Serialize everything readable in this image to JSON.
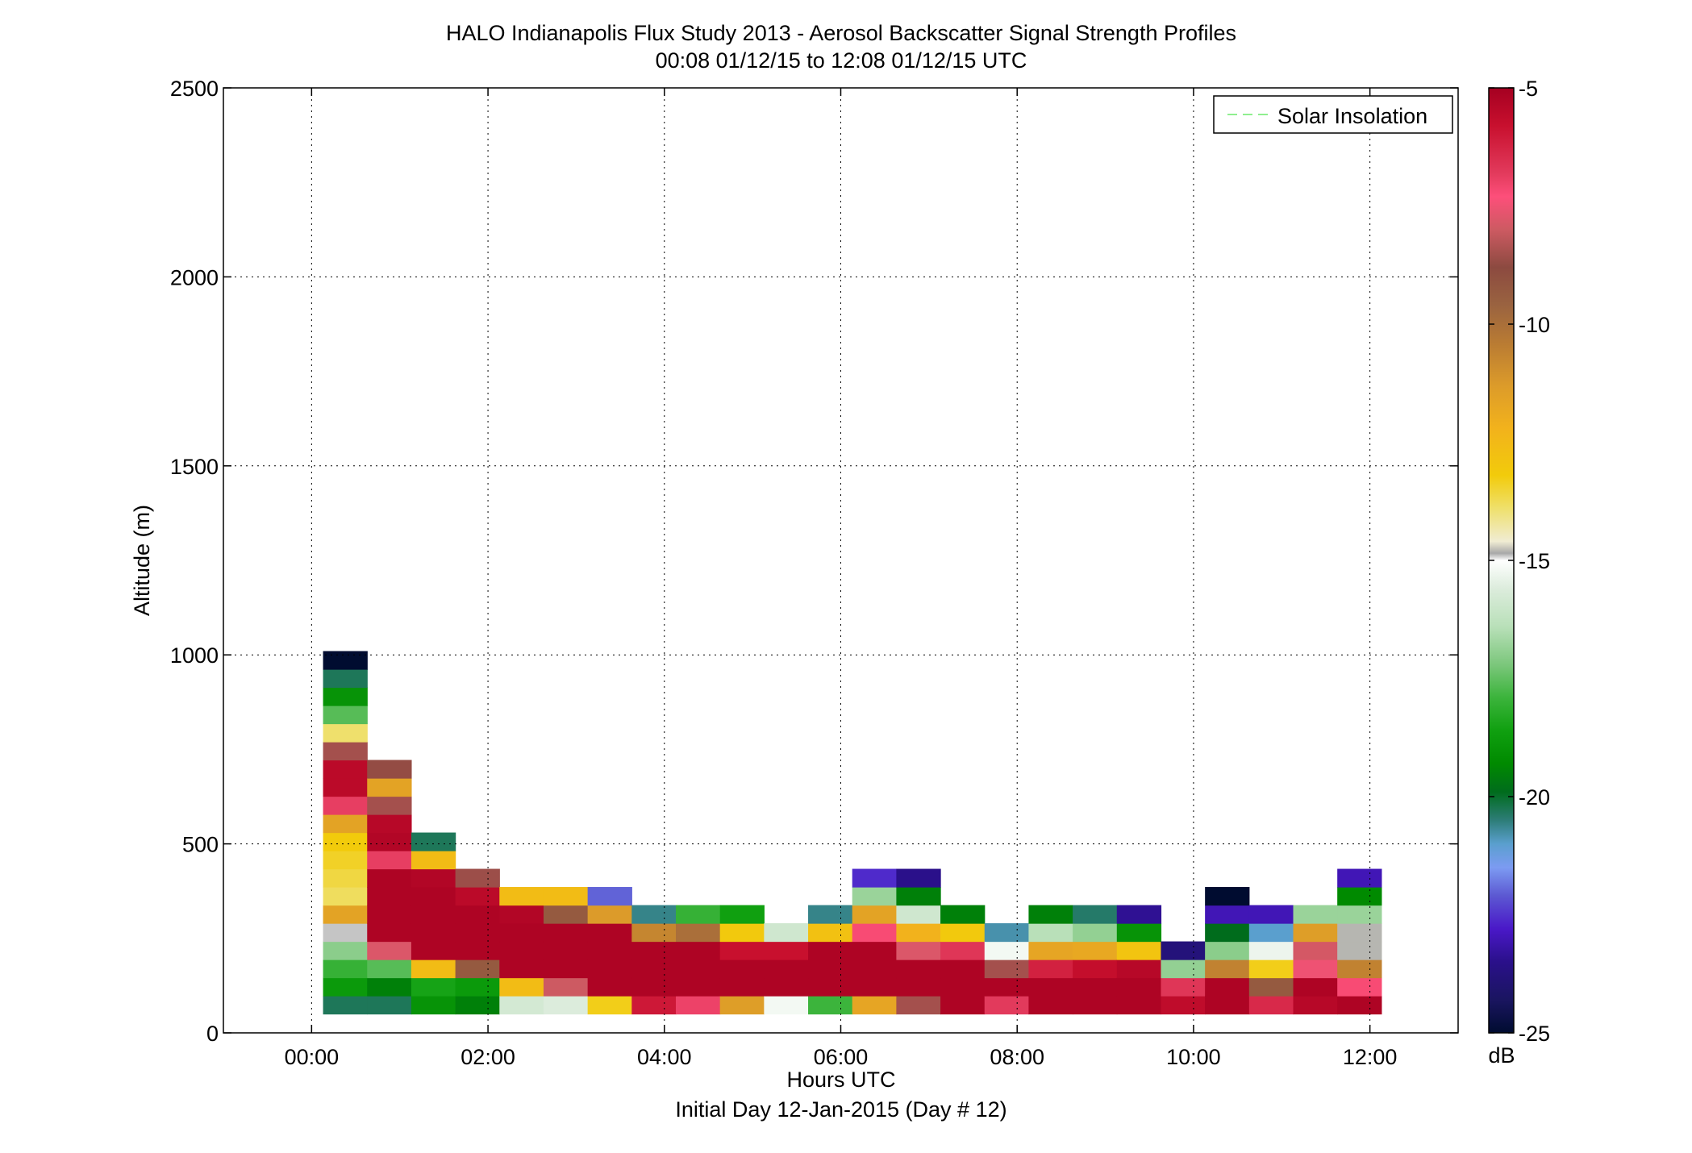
{
  "chart_data": {
    "type": "heatmap",
    "title": "HALO Indianapolis Flux Study 2013 - Aerosol Backscatter Signal Strength Profiles",
    "subtitle": "00:08 01/12/15 to 12:08 01/12/15  UTC",
    "xlabel": "Hours UTC",
    "xlabel2": "Initial Day 12-Jan-2015 (Day # 12)",
    "ylabel": "Altitude (m)",
    "xlim": [
      -1.0,
      13.0
    ],
    "ylim": [
      0,
      2500
    ],
    "x_ticks": [
      0,
      2,
      4,
      6,
      8,
      10,
      12
    ],
    "x_tick_labels": [
      "00:00",
      "02:00",
      "04:00",
      "06:00",
      "08:00",
      "10:00",
      "12:00"
    ],
    "y_ticks": [
      0,
      500,
      1000,
      1500,
      2000,
      2500
    ],
    "y_tick_labels": [
      "0",
      "500",
      "1000",
      "1500",
      "2000",
      "2500"
    ],
    "grid": true,
    "legend": {
      "position": "top-right",
      "entries": [
        {
          "label": "Solar Insolation",
          "color": "#8fef8f",
          "style": "dashed"
        }
      ]
    },
    "colorbar": {
      "label": "dB",
      "range": [
        -25,
        -5
      ],
      "ticks": [
        -5,
        -10,
        -15,
        -20,
        -25
      ],
      "tick_labels": [
        "-5",
        "-10",
        "-15",
        "-20",
        "-25"
      ]
    },
    "time_bin_hours": 0.5,
    "altitude_bin_m": 48,
    "first_altitude_m": 50,
    "profiles": [
      {
        "time": 0.13,
        "values": [
          -20.3,
          -18.8,
          -18.0,
          -17.0,
          -14.9,
          -11.6,
          -13.8,
          -13.6,
          -13.4,
          -13.2,
          -11.6,
          -6.9,
          -5.5,
          -5.5,
          -8.5,
          -13.9,
          -17.6,
          -19.0,
          -20.3,
          -25.0
        ]
      },
      {
        "time": 0.63,
        "values": [
          -20.3,
          -19.5,
          -17.6,
          -7.8,
          -5.2,
          -5.2,
          -5.2,
          -5.2,
          -6.9,
          -5.3,
          -5.4,
          -8.5,
          -11.6,
          -8.7
        ]
      },
      {
        "time": 1.13,
        "values": [
          -19.0,
          -18.5,
          -12.6,
          -5.2,
          -5.2,
          -5.2,
          -5.2,
          -5.3,
          -12.6,
          -20.3
        ]
      },
      {
        "time": 1.63,
        "values": [
          -19.5,
          -18.8,
          -9.3,
          -5.2,
          -5.2,
          -5.2,
          -5.5,
          -8.6
        ]
      },
      {
        "time": 2.13,
        "values": [
          -15.8,
          -12.6,
          -5.2,
          -5.2,
          -5.2,
          -5.3,
          -12.6
        ]
      },
      {
        "time": 2.63,
        "values": [
          -15.6,
          -8.0,
          -5.2,
          -5.2,
          -5.2,
          -9.3,
          -12.6
        ]
      },
      {
        "time": 3.13,
        "values": [
          -13.3,
          -5.2,
          -5.2,
          -5.2,
          -5.2,
          -11.3,
          -22.0
        ]
      },
      {
        "time": 3.63,
        "values": [
          -6.0,
          -5.2,
          -5.2,
          -5.2,
          -10.7,
          -20.6
        ]
      },
      {
        "time": 4.13,
        "values": [
          -7.0,
          -5.2,
          -5.2,
          -5.2,
          -10.0,
          -18.0
        ]
      },
      {
        "time": 4.63,
        "values": [
          -11.4,
          -5.2,
          -5.2,
          -5.8,
          -13.1,
          -18.6
        ]
      },
      {
        "time": 5.13,
        "values": [
          -15.2,
          -5.2,
          -5.2,
          -5.8,
          -15.9
        ]
      },
      {
        "time": 5.63,
        "values": [
          -17.9,
          -5.2,
          -5.2,
          -5.2,
          -12.8,
          -20.6
        ]
      },
      {
        "time": 6.13,
        "values": [
          -11.7,
          -5.2,
          -5.2,
          -5.2,
          -7.2,
          -11.6,
          -16.8,
          -22.6
        ]
      },
      {
        "time": 6.63,
        "values": [
          -8.5,
          -5.2,
          -5.2,
          -7.8,
          -12.2,
          -15.9,
          -19.5,
          -23.5
        ]
      },
      {
        "time": 7.13,
        "values": [
          -5.2,
          -5.2,
          -5.2,
          -6.7,
          -13.1,
          -19.5
        ]
      },
      {
        "time": 7.63,
        "values": [
          -6.8,
          -5.2,
          -8.5,
          -15.2,
          -20.8
        ]
      },
      {
        "time": 8.13,
        "values": [
          -5.2,
          -5.2,
          -6.2,
          -11.7,
          -16.4,
          -19.5
        ]
      },
      {
        "time": 8.63,
        "values": [
          -5.2,
          -5.2,
          -5.7,
          -11.8,
          -16.9,
          -20.4
        ]
      },
      {
        "time": 9.13,
        "values": [
          -5.2,
          -5.2,
          -5.4,
          -12.9,
          -19.0,
          -23.4
        ]
      },
      {
        "time": 9.63,
        "values": [
          -5.6,
          -6.7,
          -16.9,
          -23.8
        ]
      },
      {
        "time": 10.13,
        "values": [
          -5.2,
          -5.2,
          -10.6,
          -17.0,
          -19.9,
          -23.0,
          -25.0
        ]
      },
      {
        "time": 10.63,
        "values": [
          -6.4,
          -9.3,
          -13.3,
          -15.3,
          -21.0,
          -23.0
        ]
      },
      {
        "time": 11.13,
        "values": [
          -5.4,
          -5.2,
          -7.5,
          -7.9,
          -11.4,
          -16.8
        ]
      },
      {
        "time": 11.63,
        "values": [
          -5.2,
          -7.2,
          -10.6,
          -14.8,
          -14.8,
          -16.8,
          -19.3,
          -23.0
        ]
      }
    ]
  }
}
